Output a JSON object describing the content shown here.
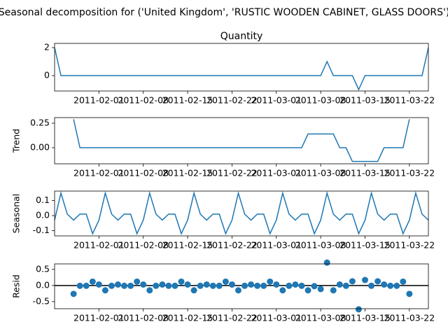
{
  "chart_data": {
    "title": "Seasonal decomposition for ('United Kingdom', 'RUSTIC WOODEN CABINET, GLASS DOORS')",
    "x": [
      "2011-01-25",
      "2011-01-26",
      "2011-01-27",
      "2011-01-28",
      "2011-01-29",
      "2011-01-30",
      "2011-01-31",
      "2011-02-01",
      "2011-02-02",
      "2011-02-03",
      "2011-02-04",
      "2011-02-05",
      "2011-02-06",
      "2011-02-07",
      "2011-02-08",
      "2011-02-09",
      "2011-02-10",
      "2011-02-11",
      "2011-02-12",
      "2011-02-13",
      "2011-02-14",
      "2011-02-15",
      "2011-02-16",
      "2011-02-17",
      "2011-02-18",
      "2011-02-19",
      "2011-02-20",
      "2011-02-21",
      "2011-02-22",
      "2011-02-23",
      "2011-02-24",
      "2011-02-25",
      "2011-02-26",
      "2011-02-27",
      "2011-02-28",
      "2011-03-01",
      "2011-03-02",
      "2011-03-03",
      "2011-03-04",
      "2011-03-05",
      "2011-03-06",
      "2011-03-07",
      "2011-03-08",
      "2011-03-09",
      "2011-03-10",
      "2011-03-11",
      "2011-03-12",
      "2011-03-13",
      "2011-03-14",
      "2011-03-15",
      "2011-03-16",
      "2011-03-17",
      "2011-03-18",
      "2011-03-19",
      "2011-03-20",
      "2011-03-21",
      "2011-03-22",
      "2011-03-23",
      "2011-03-24",
      "2011-03-25"
    ],
    "xlim": [
      "2011-01-25",
      "2011-03-25"
    ],
    "xticks": [
      "2011-02-01",
      "2011-02-08",
      "2011-02-15",
      "2011-02-22",
      "2011-03-01",
      "2011-03-08",
      "2011-03-15",
      "2011-03-22"
    ],
    "subplots": [
      {
        "type": "line",
        "title": "Quantity",
        "color": "#1f77b4",
        "values": [
          2,
          0,
          0,
          0,
          0,
          0,
          0,
          0,
          0,
          0,
          0,
          0,
          0,
          0,
          0,
          0,
          0,
          0,
          0,
          0,
          0,
          0,
          0,
          0,
          0,
          0,
          0,
          0,
          0,
          0,
          0,
          0,
          0,
          0,
          0,
          0,
          0,
          0,
          0,
          0,
          0,
          0,
          0,
          1,
          0,
          0,
          0,
          0,
          -1,
          0,
          0,
          0,
          0,
          0,
          0,
          0,
          0,
          0,
          0,
          2
        ],
        "ylim": [
          -1.1,
          2.3
        ],
        "yticks": [
          0,
          2
        ]
      },
      {
        "type": "line",
        "ylabel": "Trend",
        "color": "#1f77b4",
        "values": [
          null,
          null,
          null,
          0.29,
          0,
          0,
          0,
          0,
          0,
          0,
          0,
          0,
          0,
          0,
          0,
          0,
          0,
          0,
          0,
          0,
          0,
          0,
          0,
          0,
          0,
          0,
          0,
          0,
          0,
          0,
          0,
          0,
          0,
          0,
          0,
          0,
          0,
          0,
          0,
          0,
          0.14,
          0.14,
          0.14,
          0.14,
          0.14,
          0,
          0,
          -0.14,
          -0.14,
          -0.14,
          -0.14,
          -0.14,
          0,
          0,
          0,
          0,
          0.29,
          null,
          null,
          null
        ],
        "ylim": [
          -0.164,
          0.307
        ],
        "yticks": [
          {
            "value": 0,
            "label": "0.00"
          },
          0.25
        ]
      },
      {
        "type": "line",
        "ylabel": "Seasonal",
        "color": "#1f77b4",
        "values": [
          -0.03,
          0.15,
          0.01,
          -0.03,
          0.01,
          0.01,
          -0.12,
          -0.03,
          0.15,
          0.01,
          -0.03,
          0.01,
          0.01,
          -0.12,
          -0.03,
          0.15,
          0.01,
          -0.03,
          0.01,
          0.01,
          -0.12,
          -0.03,
          0.15,
          0.01,
          -0.03,
          0.01,
          0.01,
          -0.12,
          -0.03,
          0.15,
          0.01,
          -0.03,
          0.01,
          0.01,
          -0.12,
          -0.03,
          0.15,
          0.01,
          -0.03,
          0.01,
          0.01,
          -0.12,
          -0.03,
          0.15,
          0.01,
          -0.03,
          0.01,
          0.01,
          -0.12,
          -0.03,
          0.15,
          0.01,
          -0.03,
          0.01,
          0.01,
          -0.12,
          -0.03,
          0.15,
          0.01,
          -0.03
        ],
        "ylim": [
          -0.135,
          0.163
        ],
        "yticks": [
          -0.1,
          {
            "value": 0,
            "label": "0.0"
          },
          0.1
        ]
      },
      {
        "type": "scatter",
        "ylabel": "Resid",
        "color": "#1f77b4",
        "baseline": 0,
        "values": [
          null,
          null,
          null,
          -0.26,
          -0.01,
          -0.01,
          0.12,
          0.03,
          -0.15,
          -0.01,
          0.03,
          -0.01,
          -0.01,
          0.12,
          0.03,
          -0.15,
          -0.01,
          0.03,
          -0.01,
          -0.01,
          0.12,
          0.03,
          -0.15,
          -0.01,
          0.03,
          -0.01,
          -0.01,
          0.12,
          0.03,
          -0.15,
          -0.01,
          0.03,
          -0.01,
          -0.01,
          0.12,
          0.03,
          -0.15,
          -0.01,
          0.03,
          -0.01,
          -0.15,
          -0.02,
          -0.11,
          0.71,
          -0.15,
          0.03,
          -0.01,
          0.13,
          -0.74,
          0.17,
          -0.01,
          0.13,
          0.03,
          -0.01,
          -0.01,
          0.12,
          -0.26,
          null,
          null,
          null
        ],
        "ylim": [
          -0.72,
          0.67
        ],
        "yticks": [
          -0.5,
          {
            "value": 0,
            "label": "0.0"
          },
          0.5
        ]
      }
    ]
  }
}
